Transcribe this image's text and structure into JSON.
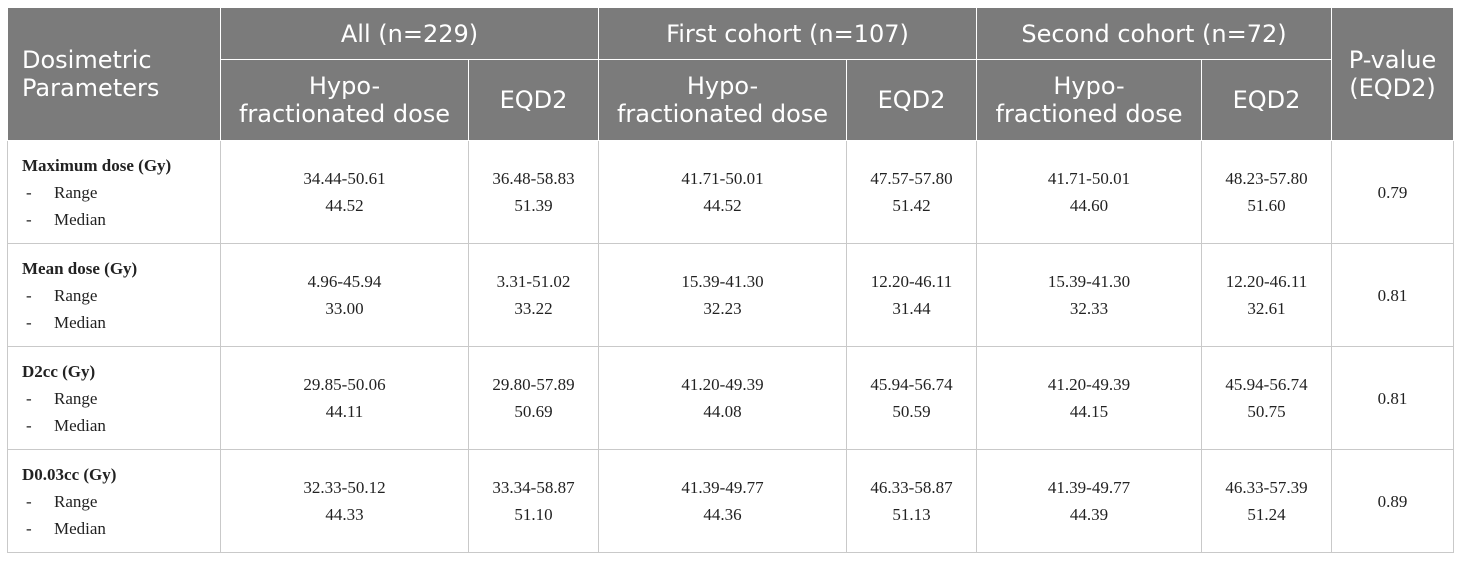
{
  "header": {
    "row_label": [
      "Dosimetric",
      "Parameters"
    ],
    "groups": [
      "All (n=229)",
      "First cohort (n=107)",
      "Second cohort (n=72)"
    ],
    "p_value": [
      "P-value",
      "(EQD2)"
    ],
    "subheaders": [
      [
        "Hypo-",
        "fractionated dose"
      ],
      [
        "EQD2"
      ],
      [
        "Hypo-",
        "fractionated dose"
      ],
      [
        "EQD2"
      ],
      [
        "Hypo-",
        "fractioned dose"
      ],
      [
        "EQD2"
      ]
    ]
  },
  "sub_labels": {
    "dash": "-",
    "range": "Range",
    "median": "Median"
  },
  "rows": [
    {
      "title": "Maximum dose (Gy)",
      "cells": [
        [
          "34.44-50.61",
          "44.52"
        ],
        [
          "36.48-58.83",
          "51.39"
        ],
        [
          "41.71-50.01",
          "44.52"
        ],
        [
          "47.57-57.80",
          "51.42"
        ],
        [
          "41.71-50.01",
          "44.60"
        ],
        [
          "48.23-57.80",
          "51.60"
        ]
      ],
      "p": "0.79"
    },
    {
      "title": "Mean dose (Gy)",
      "cells": [
        [
          "4.96-45.94",
          "33.00"
        ],
        [
          "3.31-51.02",
          "33.22"
        ],
        [
          "15.39-41.30",
          "32.23"
        ],
        [
          "12.20-46.11",
          "31.44"
        ],
        [
          "15.39-41.30",
          "32.33"
        ],
        [
          "12.20-46.11",
          "32.61"
        ]
      ],
      "p": "0.81"
    },
    {
      "title": "D2cc (Gy)",
      "cells": [
        [
          "29.85-50.06",
          "44.11"
        ],
        [
          "29.80-57.89",
          "50.69"
        ],
        [
          "41.20-49.39",
          "44.08"
        ],
        [
          "45.94-56.74",
          "50.59"
        ],
        [
          "41.20-49.39",
          "44.15"
        ],
        [
          "45.94-56.74",
          "50.75"
        ]
      ],
      "p": "0.81"
    },
    {
      "title": "D0.03cc (Gy)",
      "cells": [
        [
          "32.33-50.12",
          "44.33"
        ],
        [
          "33.34-58.87",
          "51.10"
        ],
        [
          "41.39-49.77",
          "44.36"
        ],
        [
          "46.33-58.87",
          "51.13"
        ],
        [
          "41.39-49.77",
          "44.39"
        ],
        [
          "46.33-57.39",
          "51.24"
        ]
      ],
      "p": "0.89"
    }
  ]
}
